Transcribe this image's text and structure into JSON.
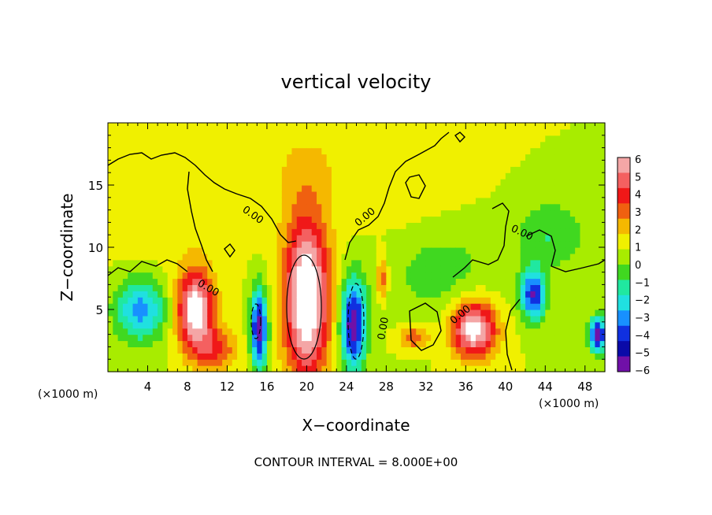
{
  "chart_data": {
    "type": "heatmap",
    "title": "vertical velocity",
    "xlabel": "X−coordinate",
    "ylabel": "Z−coordinate",
    "x_unit_left": "(×1000 m)",
    "x_unit_right": "(×1000 m)",
    "footer": "CONTOUR INTERVAL = 8.000E+00",
    "xlim": [
      0,
      50
    ],
    "ylim": [
      0,
      20
    ],
    "x_ticks": [
      4,
      8,
      12,
      16,
      20,
      24,
      28,
      32,
      36,
      40,
      44,
      48
    ],
    "y_ticks": [
      5,
      10,
      15
    ],
    "zero_contour_label": "0.00",
    "colorbar": {
      "ticks": [
        6,
        5,
        4,
        3,
        2,
        1,
        0,
        -1,
        -2,
        -3,
        -4,
        -5,
        -6
      ],
      "labels": [
        "6",
        "5",
        "4",
        "3",
        "2",
        "1",
        "0",
        "−1",
        "−2",
        "−3",
        "−4",
        "−5",
        "−6"
      ],
      "colors": [
        "#f4a6a6",
        "#f46060",
        "#f01818",
        "#f06010",
        "#f5b800",
        "#f0f000",
        "#a8ec00",
        "#40d820",
        "#20e8a0",
        "#20e0e0",
        "#1890ff",
        "#1030e0",
        "#0a0aa8",
        "#7010a8"
      ]
    },
    "features": [
      {
        "x": 20,
        "z": 6.0,
        "peak": 8,
        "sx": 1.6,
        "sz": 4.5
      },
      {
        "x": 8.8,
        "z": 5.0,
        "peak": 7,
        "sx": 1.3,
        "sz": 2.2
      },
      {
        "x": 36.8,
        "z": 3.5,
        "peak": 7,
        "sx": 1.6,
        "sz": 1.6
      },
      {
        "x": 15.2,
        "z": 3.5,
        "peak": -7,
        "sx": 0.6,
        "sz": 2.3
      },
      {
        "x": 24.7,
        "z": 3.8,
        "peak": -7,
        "sx": 0.9,
        "sz": 2.6
      },
      {
        "x": 3.3,
        "z": 5.0,
        "peak": -4.5,
        "sx": 1.8,
        "sz": 1.8
      },
      {
        "x": 42.8,
        "z": 6.2,
        "peak": -6,
        "sx": 0.9,
        "sz": 1.4
      },
      {
        "x": 49.3,
        "z": 3.0,
        "peak": -7,
        "sx": 0.6,
        "sz": 1.0
      },
      {
        "x": 27.6,
        "z": 7.5,
        "peak": 3,
        "sx": 0.4,
        "sz": 1.2
      },
      {
        "x": 30.8,
        "z": 2.8,
        "peak": 3,
        "sx": 1.1,
        "sz": 0.7
      },
      {
        "x": 10.8,
        "z": 1.8,
        "peak": 3,
        "sx": 1.6,
        "sz": 1.2
      },
      {
        "x": 33.0,
        "z": 8.5,
        "peak": -1.8,
        "sx": 4.0,
        "sz": 3.0
      },
      {
        "x": 44.5,
        "z": 11.0,
        "peak": -2.0,
        "sx": 2.5,
        "sz": 2.0
      },
      {
        "x": 31.0,
        "z": 13.0,
        "peak": 0.8,
        "sx": 4.0,
        "sz": 4.0
      },
      {
        "x": 7.0,
        "z": 14.0,
        "peak": 0.8,
        "sx": 5.0,
        "sz": 4.0
      },
      {
        "x": 20.0,
        "z": 16.5,
        "peak": 1.0,
        "sx": 3.0,
        "sz": 2.5
      }
    ]
  }
}
